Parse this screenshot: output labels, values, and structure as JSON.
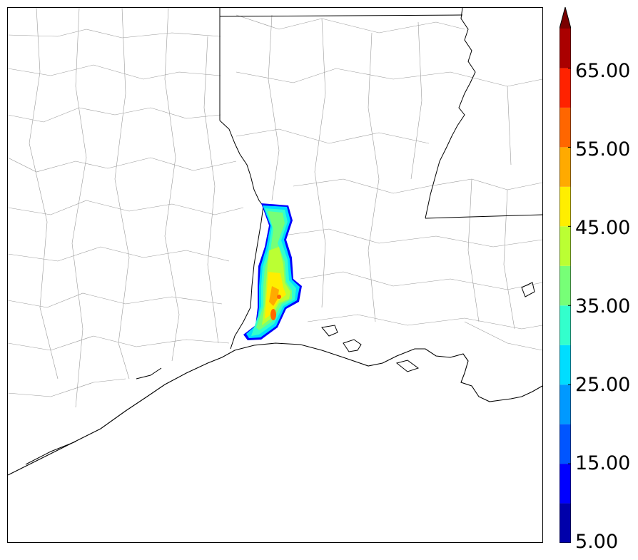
{
  "colorbar": {
    "labels": [
      "5.00",
      "15.00",
      "25.00",
      "35.00",
      "45.00",
      "55.00",
      "65.00"
    ],
    "bins": [
      {
        "from": 5,
        "to": 10,
        "color": "#0000aa"
      },
      {
        "from": 10,
        "to": 15,
        "color": "#0000ff"
      },
      {
        "from": 15,
        "to": 20,
        "color": "#0055ff"
      },
      {
        "from": 20,
        "to": 25,
        "color": "#0099ff"
      },
      {
        "from": 25,
        "to": 30,
        "color": "#00ddff"
      },
      {
        "from": 30,
        "to": 35,
        "color": "#33ffcc"
      },
      {
        "from": 35,
        "to": 40,
        "color": "#77ff77"
      },
      {
        "from": 40,
        "to": 45,
        "color": "#bbff33"
      },
      {
        "from": 45,
        "to": 50,
        "color": "#ffee00"
      },
      {
        "from": 50,
        "to": 55,
        "color": "#ffaa00"
      },
      {
        "from": 55,
        "to": 60,
        "color": "#ff6600"
      },
      {
        "from": 60,
        "to": 65,
        "color": "#ff2200"
      },
      {
        "from": 65,
        "to": 70,
        "color": "#aa0000"
      }
    ],
    "extend": "max",
    "extend_color": "#7a0000"
  }
}
